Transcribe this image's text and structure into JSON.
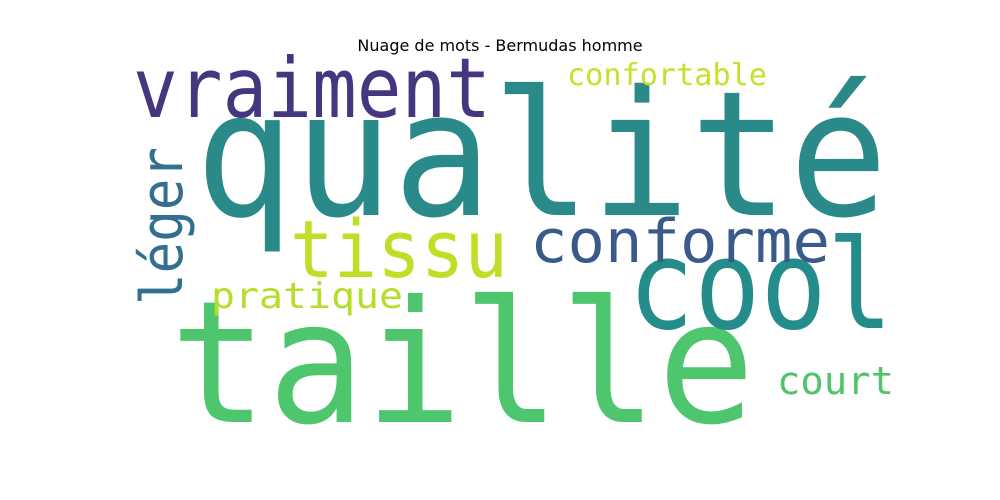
{
  "title": "Nuage de mots - Bermudas homme",
  "words": [
    {
      "text": "qualité",
      "color": "#2a8a8a"
    },
    {
      "text": "taille",
      "color": "#4ec66d"
    },
    {
      "text": "cool",
      "color": "#248c8b"
    },
    {
      "text": "vraiment",
      "color": "#46367f"
    },
    {
      "text": "tissu",
      "color": "#bfdf27"
    },
    {
      "text": "conforme",
      "color": "#3a5a8c"
    },
    {
      "text": "léger",
      "color": "#336f8e"
    },
    {
      "text": "confortable",
      "color": "#c8df2c"
    },
    {
      "text": "pratique",
      "color": "#b5de2b"
    },
    {
      "text": "court",
      "color": "#4fc46a"
    }
  ]
}
